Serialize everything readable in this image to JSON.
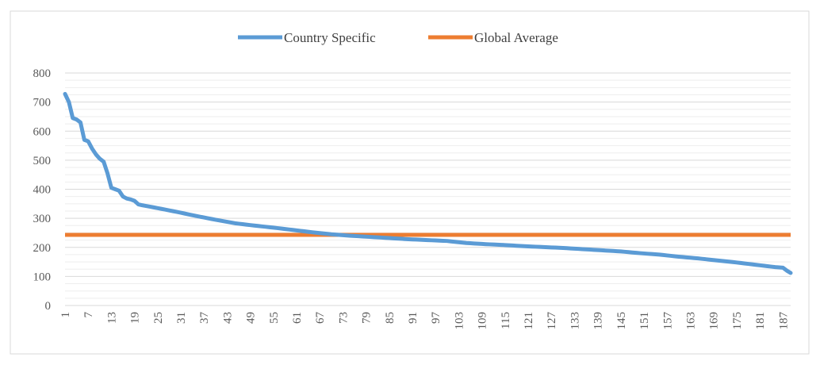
{
  "chart_data": {
    "type": "line",
    "title": "",
    "xlabel": "",
    "ylabel": "",
    "ylim": [
      0,
      800
    ],
    "yticks": [
      0,
      100,
      200,
      300,
      400,
      500,
      600,
      700,
      800
    ],
    "x_tick_labels": [
      "1",
      "7",
      "13",
      "19",
      "25",
      "31",
      "37",
      "43",
      "49",
      "55",
      "61",
      "67",
      "73",
      "79",
      "85",
      "91",
      "97",
      "103",
      "109",
      "115",
      "121",
      "127",
      "133",
      "139",
      "145",
      "151",
      "157",
      "163",
      "169",
      "175",
      "181",
      "187"
    ],
    "x_count": 189,
    "legend_position": "top-center",
    "series": [
      {
        "name": "Country Specific",
        "color": "#5B9BD5",
        "anchors": [
          [
            1,
            728
          ],
          [
            2,
            700
          ],
          [
            3,
            645
          ],
          [
            4,
            640
          ],
          [
            5,
            630
          ],
          [
            6,
            570
          ],
          [
            7,
            565
          ],
          [
            8,
            540
          ],
          [
            9,
            520
          ],
          [
            10,
            505
          ],
          [
            11,
            495
          ],
          [
            12,
            455
          ],
          [
            13,
            405
          ],
          [
            14,
            400
          ],
          [
            15,
            395
          ],
          [
            16,
            375
          ],
          [
            17,
            368
          ],
          [
            18,
            365
          ],
          [
            19,
            360
          ],
          [
            20,
            348
          ],
          [
            21,
            345
          ],
          [
            25,
            335
          ],
          [
            30,
            322
          ],
          [
            35,
            308
          ],
          [
            40,
            295
          ],
          [
            45,
            283
          ],
          [
            50,
            275
          ],
          [
            55,
            268
          ],
          [
            60,
            260
          ],
          [
            65,
            252
          ],
          [
            70,
            245
          ],
          [
            75,
            240
          ],
          [
            80,
            236
          ],
          [
            85,
            232
          ],
          [
            90,
            228
          ],
          [
            95,
            225
          ],
          [
            100,
            222
          ],
          [
            105,
            215
          ],
          [
            110,
            211
          ],
          [
            115,
            208
          ],
          [
            120,
            204
          ],
          [
            125,
            201
          ],
          [
            130,
            198
          ],
          [
            135,
            194
          ],
          [
            140,
            190
          ],
          [
            145,
            186
          ],
          [
            150,
            180
          ],
          [
            155,
            175
          ],
          [
            160,
            168
          ],
          [
            165,
            162
          ],
          [
            170,
            155
          ],
          [
            175,
            148
          ],
          [
            180,
            140
          ],
          [
            185,
            132
          ],
          [
            187,
            130
          ],
          [
            188,
            120
          ],
          [
            189,
            112
          ]
        ]
      },
      {
        "name": "Global Average",
        "color": "#ED7D31",
        "value": 243
      }
    ]
  }
}
